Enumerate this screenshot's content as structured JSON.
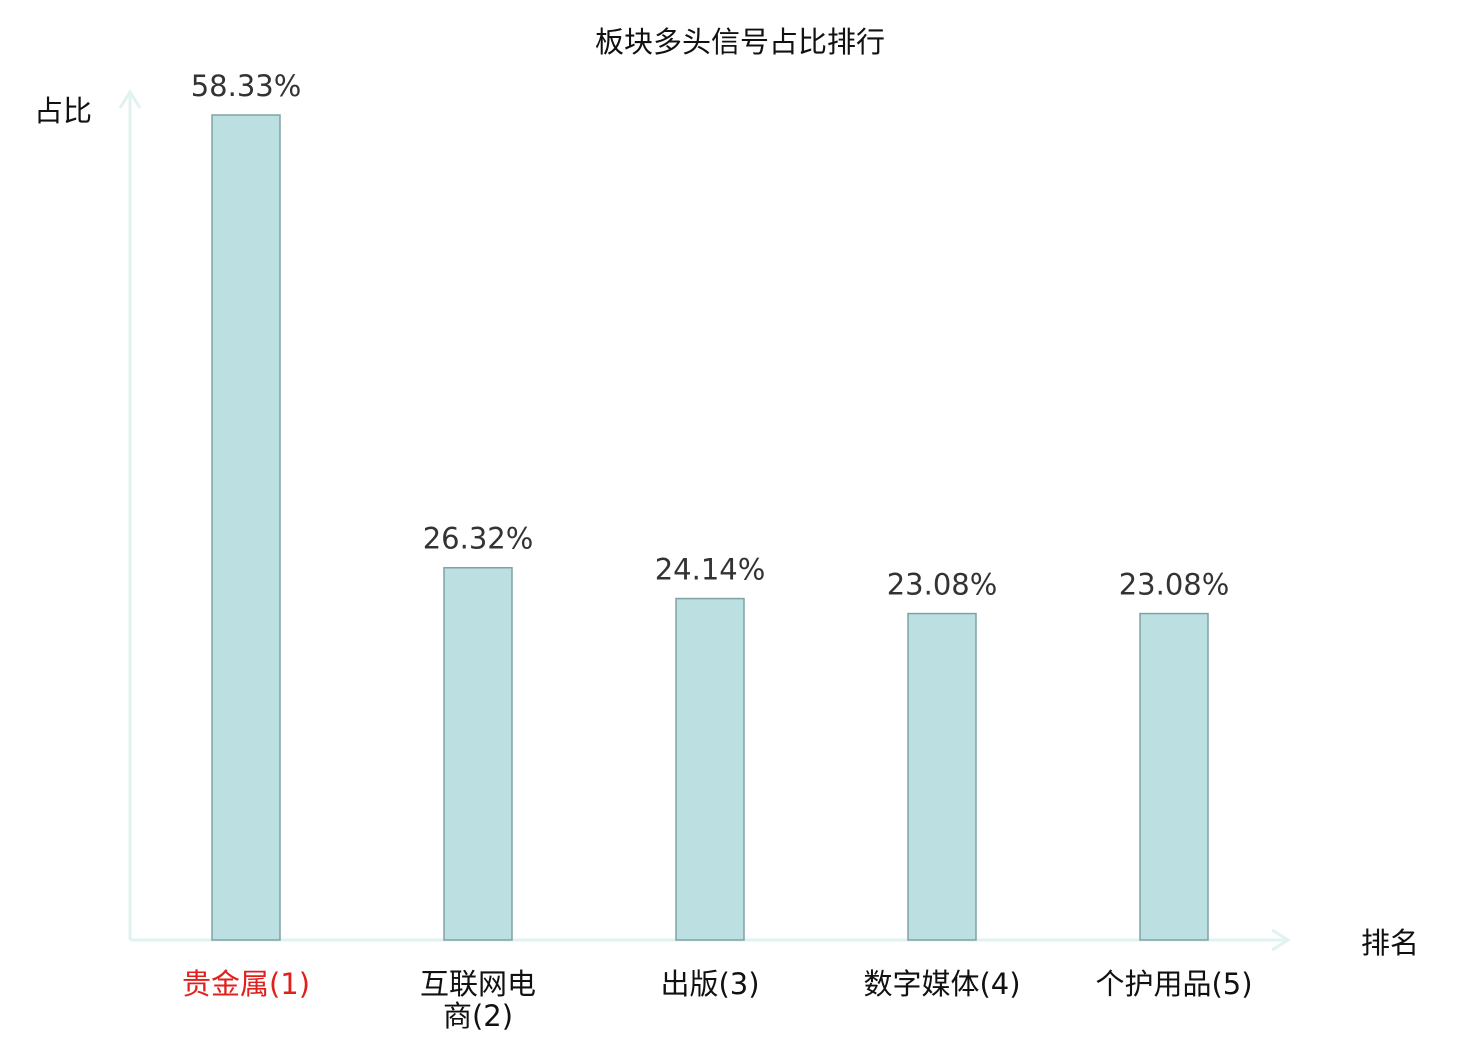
{
  "chart_data": {
    "type": "bar",
    "title": "板块多头信号占比排行",
    "xlabel": "排名",
    "ylabel": "占比",
    "categories": [
      "贵金属(1)",
      "互联网电商(2)",
      "出版(3)",
      "数字媒体(4)",
      "个护用品(5)"
    ],
    "category_lines": [
      [
        "贵金属(1)"
      ],
      [
        "互联网电",
        "商(2)"
      ],
      [
        "出版(3)"
      ],
      [
        "数字媒体(4)"
      ],
      [
        "个护用品(5)"
      ]
    ],
    "values": [
      58.33,
      26.32,
      24.14,
      23.08,
      23.08
    ],
    "value_labels": [
      "58.33%",
      "26.32%",
      "24.14%",
      "23.08%",
      "23.08%"
    ],
    "ylim": [
      0,
      58.33
    ],
    "grid": false,
    "legend": "none",
    "colors": {
      "bar_fill": "#bce0e1",
      "bar_stroke": "#7fa3a4",
      "axis": "#e0f3f0",
      "highlight_label": "#e0201c",
      "label": "#111111",
      "value_label": "#333333",
      "title": "#111111"
    },
    "highlight_index": 0
  }
}
